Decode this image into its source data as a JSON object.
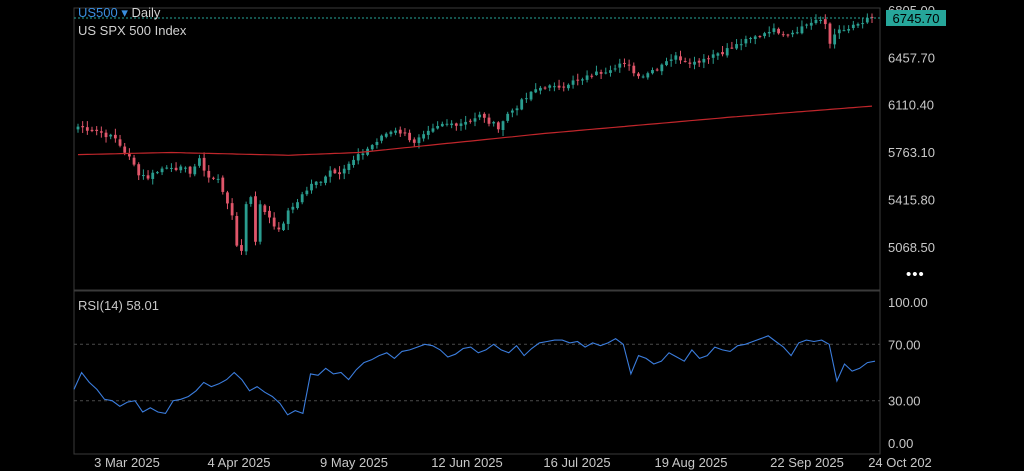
{
  "header": {
    "symbol": "US500",
    "dropdown_glyph": "▾",
    "timeframe": "Daily",
    "instrument_name": "US SPX 500 Index"
  },
  "more_glyph": "•••",
  "rsi_label": "RSI(14)  58.01",
  "colors": {
    "up": "#2a9d8f",
    "down": "#e0566a",
    "ma": "#c0262b",
    "rsi": "#3b7ddd",
    "price_tag": "#26a69a",
    "symbol": "#3a8dde"
  },
  "chart_data": [
    {
      "type": "candlestick",
      "title": "US SPX 500 Index",
      "yticks": [
        "6805.00",
        "6457.70",
        "6110.40",
        "5763.10",
        "5415.80",
        "5068.50"
      ],
      "current_price": "6745.70",
      "ylim": [
        4860,
        6805
      ],
      "xticks": [
        "3 Mar 2025",
        "4 Apr 2025",
        "9 May 2025",
        "12 Jun 2025",
        "16 Jul 2025",
        "19 Aug 2025",
        "22 Sep 2025",
        "24 Oct 202"
      ],
      "close_path": [
        [
          0,
          5950
        ],
        [
          4,
          5920
        ],
        [
          8,
          5860
        ],
        [
          11,
          5720
        ],
        [
          13,
          5610
        ],
        [
          15,
          5580
        ],
        [
          17,
          5630
        ],
        [
          20,
          5660
        ],
        [
          22,
          5640
        ],
        [
          24,
          5620
        ],
        [
          26,
          5700
        ],
        [
          28,
          5580
        ],
        [
          30,
          5560
        ],
        [
          32,
          5400
        ],
        [
          33,
          5280
        ],
        [
          34,
          5080
        ],
        [
          35,
          5050
        ],
        [
          36,
          5380
        ],
        [
          37,
          5440
        ],
        [
          38,
          5120
        ],
        [
          39,
          5370
        ],
        [
          41,
          5290
        ],
        [
          43,
          5180
        ],
        [
          45,
          5320
        ],
        [
          48,
          5450
        ],
        [
          50,
          5520
        ],
        [
          52,
          5560
        ],
        [
          54,
          5630
        ],
        [
          56,
          5620
        ],
        [
          58,
          5670
        ],
        [
          60,
          5730
        ],
        [
          62,
          5790
        ],
        [
          64,
          5840
        ],
        [
          66,
          5900
        ],
        [
          68,
          5930
        ],
        [
          70,
          5890
        ],
        [
          72,
          5840
        ],
        [
          74,
          5880
        ],
        [
          76,
          5920
        ],
        [
          78,
          5960
        ],
        [
          80,
          5970
        ],
        [
          82,
          5980
        ],
        [
          84,
          6000
        ],
        [
          86,
          6030
        ],
        [
          88,
          5980
        ],
        [
          90,
          5950
        ],
        [
          92,
          6040
        ],
        [
          94,
          6100
        ],
        [
          96,
          6160
        ],
        [
          98,
          6220
        ],
        [
          100,
          6250
        ],
        [
          102,
          6230
        ],
        [
          104,
          6260
        ],
        [
          106,
          6280
        ],
        [
          108,
          6290
        ],
        [
          110,
          6330
        ],
        [
          112,
          6350
        ],
        [
          114,
          6380
        ],
        [
          116,
          6410
        ],
        [
          118,
          6390
        ],
        [
          120,
          6320
        ],
        [
          122,
          6350
        ],
        [
          124,
          6380
        ],
        [
          126,
          6440
        ],
        [
          128,
          6460
        ],
        [
          130,
          6440
        ],
        [
          132,
          6420
        ],
        [
          134,
          6450
        ],
        [
          136,
          6480
        ],
        [
          138,
          6500
        ],
        [
          140,
          6530
        ],
        [
          142,
          6560
        ],
        [
          144,
          6590
        ],
        [
          146,
          6620
        ],
        [
          148,
          6660
        ],
        [
          150,
          6650
        ],
        [
          152,
          6630
        ],
        [
          154,
          6660
        ],
        [
          156,
          6700
        ],
        [
          158,
          6730
        ],
        [
          160,
          6700
        ],
        [
          161,
          6560
        ],
        [
          162,
          6640
        ],
        [
          164,
          6650
        ],
        [
          166,
          6680
        ],
        [
          168,
          6710
        ],
        [
          170,
          6745.7
        ]
      ],
      "ma_path": [
        [
          0,
          5745
        ],
        [
          20,
          5760
        ],
        [
          45,
          5740
        ],
        [
          60,
          5760
        ],
        [
          100,
          5900
        ],
        [
          140,
          6020
        ],
        [
          170,
          6100
        ]
      ]
    },
    {
      "type": "line",
      "title": "RSI(14)",
      "ylabel": "",
      "yticks": [
        "100.00",
        "70.00",
        "30.00",
        "0.00"
      ],
      "ylim": [
        0,
        100
      ],
      "guides": [
        70,
        30
      ],
      "value": "58.01",
      "values": [
        38,
        50,
        43,
        38,
        31,
        30,
        26,
        29,
        30,
        22,
        25,
        22,
        21,
        30,
        31,
        33,
        37,
        43,
        40,
        42,
        45,
        50,
        45,
        37,
        40,
        36,
        33,
        28,
        20,
        23,
        21,
        49,
        48,
        53,
        49,
        50,
        45,
        52,
        57,
        59,
        62,
        64,
        60,
        65,
        66,
        68,
        70,
        69,
        66,
        61,
        63,
        67,
        68,
        64,
        66,
        70,
        66,
        64,
        69,
        62,
        67,
        71,
        72,
        73,
        73,
        71,
        72,
        68,
        71,
        69,
        71,
        74,
        70,
        49,
        62,
        60,
        56,
        58,
        64,
        61,
        58,
        66,
        60,
        62,
        68,
        66,
        65,
        69,
        70,
        72,
        74,
        76,
        72,
        68,
        62,
        71,
        73,
        72,
        73,
        70,
        44,
        56,
        51,
        53,
        57,
        58
      ]
    }
  ]
}
